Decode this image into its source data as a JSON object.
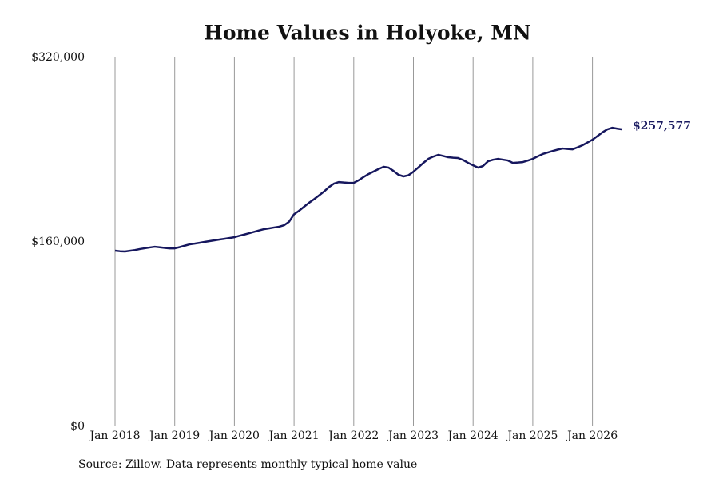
{
  "chart_data": {
    "type": "line",
    "title": "Home Values in Holyoke, MN",
    "source": "Source: Zillow. Data represents monthly typical home value",
    "x": [
      "2018-01",
      "2018-02",
      "2018-03",
      "2018-04",
      "2018-05",
      "2018-06",
      "2018-07",
      "2018-08",
      "2018-09",
      "2018-10",
      "2018-11",
      "2018-12",
      "2019-01",
      "2019-02",
      "2019-03",
      "2019-04",
      "2019-05",
      "2019-06",
      "2019-07",
      "2019-08",
      "2019-09",
      "2019-10",
      "2019-11",
      "2019-12",
      "2020-01",
      "2020-02",
      "2020-03",
      "2020-04",
      "2020-05",
      "2020-06",
      "2020-07",
      "2020-08",
      "2020-09",
      "2020-10",
      "2020-11",
      "2020-12",
      "2021-01",
      "2021-02",
      "2021-03",
      "2021-04",
      "2021-05",
      "2021-06",
      "2021-07",
      "2021-08",
      "2021-09",
      "2021-10",
      "2021-11",
      "2021-12",
      "2022-01",
      "2022-02",
      "2022-03",
      "2022-04",
      "2022-05",
      "2022-06",
      "2022-07",
      "2022-08",
      "2022-09",
      "2022-10",
      "2022-11",
      "2022-12",
      "2023-01",
      "2023-02",
      "2023-03",
      "2023-04",
      "2023-05",
      "2023-06",
      "2023-07",
      "2023-08",
      "2023-09",
      "2023-10",
      "2023-11",
      "2023-12",
      "2024-01",
      "2024-02",
      "2024-03",
      "2024-04",
      "2024-05",
      "2024-06",
      "2024-07",
      "2024-08",
      "2024-09",
      "2024-10",
      "2024-11",
      "2024-12",
      "2025-01",
      "2025-02",
      "2025-03",
      "2025-04",
      "2025-05",
      "2025-06",
      "2025-07",
      "2025-08",
      "2025-09",
      "2025-10",
      "2025-11",
      "2025-12",
      "2026-01",
      "2026-02",
      "2026-03",
      "2026-04",
      "2026-05",
      "2026-06",
      "2026-07"
    ],
    "series": [
      {
        "color": "#16175e",
        "values": [
          152400,
          151900,
          151700,
          152300,
          152900,
          153800,
          154500,
          155200,
          155800,
          155300,
          154800,
          154400,
          154400,
          155500,
          156700,
          157900,
          158500,
          159200,
          160000,
          160700,
          161400,
          162100,
          162700,
          163400,
          164100,
          165300,
          166400,
          167600,
          168800,
          170000,
          171100,
          171800,
          172500,
          173200,
          174500,
          177500,
          184000,
          187000,
          190500,
          193900,
          197000,
          200300,
          203600,
          207500,
          210500,
          211900,
          211500,
          211200,
          211200,
          213500,
          216300,
          218900,
          221000,
          223200,
          225100,
          224400,
          221500,
          218200,
          216800,
          217800,
          220900,
          224600,
          228500,
          232000,
          234000,
          235500,
          234500,
          233400,
          233000,
          232700,
          231000,
          228500,
          226400,
          224400,
          225800,
          229900,
          231200,
          232000,
          231300,
          230600,
          228500,
          228800,
          229200,
          230500,
          232000,
          234200,
          236200,
          237500,
          238800,
          240000,
          241000,
          240600,
          240300,
          242000,
          243800,
          246200,
          248600,
          251800,
          255000,
          257600,
          259000,
          258200,
          257577
        ],
        "value_labels": [
          null,
          null,
          null,
          null,
          null,
          null,
          null,
          null,
          null,
          null,
          null,
          null,
          null,
          null,
          null,
          null,
          null,
          null,
          null,
          null,
          null,
          null,
          null,
          null,
          null,
          null,
          null,
          null,
          null,
          null,
          null,
          null,
          null,
          null,
          null,
          null,
          null,
          null,
          null,
          null,
          null,
          null,
          null,
          null,
          null,
          null,
          null,
          null,
          null,
          null,
          null,
          null,
          null,
          null,
          null,
          null,
          null,
          null,
          null,
          null,
          null,
          null,
          null,
          null,
          null,
          null,
          null,
          null,
          null,
          null,
          null,
          null,
          null,
          null,
          null,
          null,
          null,
          null,
          null,
          null,
          null,
          null,
          null,
          null,
          null,
          null,
          null,
          null,
          null,
          null,
          null,
          null,
          null,
          null,
          null,
          null,
          null,
          null,
          null,
          null,
          null,
          null,
          "$257,577"
        ]
      }
    ],
    "xticks": [
      {
        "value": "2018-01",
        "label": "Jan 2018"
      },
      {
        "value": "2019-01",
        "label": "Jan 2019"
      },
      {
        "value": "2020-01",
        "label": "Jan 2020"
      },
      {
        "value": "2021-01",
        "label": "Jan 2021"
      },
      {
        "value": "2022-01",
        "label": "Jan 2022"
      },
      {
        "value": "2023-01",
        "label": "Jan 2023"
      },
      {
        "value": "2024-01",
        "label": "Jan 2024"
      },
      {
        "value": "2025-01",
        "label": "Jan 2025"
      },
      {
        "value": "2026-01",
        "label": "Jan 2026"
      }
    ],
    "ylim": [
      0,
      320000
    ],
    "yticks": [
      {
        "value": 0,
        "label": "$0"
      },
      {
        "value": 160000,
        "label": "$160,000"
      },
      {
        "value": 320000,
        "label": "$320,000"
      }
    ],
    "grid": "x"
  }
}
